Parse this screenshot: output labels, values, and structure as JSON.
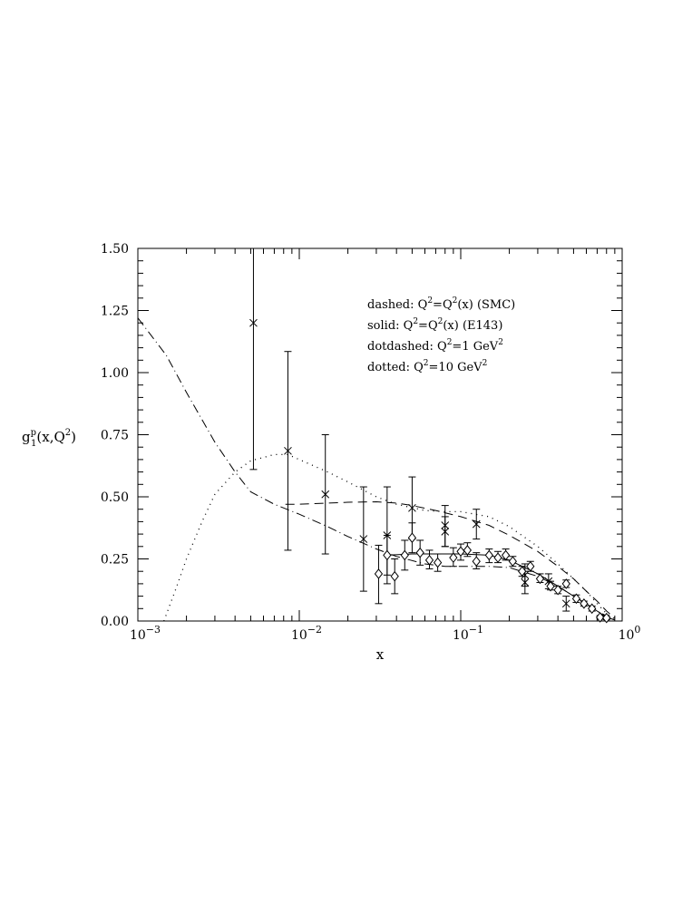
{
  "chart_data": {
    "type": "scatter",
    "title": "",
    "xlabel": "x",
    "ylabel": "g₁ᵖ(x,Q²)",
    "ylabel_parts": {
      "main": "g",
      "sub": "1",
      "sup": "p",
      "rest": "(x,Q",
      "rest_sup": "2",
      "close": ")"
    },
    "xscale": "log",
    "xlim": [
      0.001,
      1
    ],
    "ylim": [
      0,
      1.5
    ],
    "x_ticks": [
      {
        "value": 0.001,
        "base": "10",
        "exp": "−3"
      },
      {
        "value": 0.01,
        "base": "10",
        "exp": "−2"
      },
      {
        "value": 0.1,
        "base": "10",
        "exp": "−1"
      },
      {
        "value": 1,
        "base": "10",
        "exp": "0"
      }
    ],
    "y_ticks": [
      "0.00",
      "0.25",
      "0.50",
      "0.75",
      "1.00",
      "1.25",
      "1.50"
    ],
    "y_tick_values": [
      0,
      0.25,
      0.5,
      0.75,
      1.0,
      1.25,
      1.5
    ],
    "grid": false,
    "legend_position": "top-right",
    "legend": [
      {
        "style": "dashed",
        "parts": [
          [
            "dashed: Q",
            ""
          ],
          [
            "2",
            "sup"
          ],
          [
            "=Q",
            ""
          ],
          [
            "2",
            "sup"
          ],
          [
            "(x) (SMC)",
            ""
          ]
        ]
      },
      {
        "style": "solid",
        "parts": [
          [
            "solid:  Q",
            ""
          ],
          [
            "2",
            "sup"
          ],
          [
            "=Q",
            ""
          ],
          [
            "2",
            "sup"
          ],
          [
            "(x) (E143)",
            ""
          ]
        ]
      },
      {
        "style": "dotdashed",
        "parts": [
          [
            "dotdashed: Q",
            ""
          ],
          [
            "2",
            "sup"
          ],
          [
            "=1 GeV",
            ""
          ],
          [
            "2",
            "sup"
          ]
        ]
      },
      {
        "style": "dotted",
        "parts": [
          [
            "dotted: Q",
            ""
          ],
          [
            "2",
            "sup"
          ],
          [
            "=10 GeV",
            ""
          ],
          [
            "2",
            "sup"
          ]
        ]
      }
    ],
    "series": [
      {
        "marker": "cross",
        "points": [
          {
            "x": 0.0052,
            "y": 1.2,
            "lo": 0.61,
            "hi": 1.5
          },
          {
            "x": 0.0085,
            "y": 0.685,
            "lo": 0.285,
            "hi": 1.085
          },
          {
            "x": 0.0145,
            "y": 0.51,
            "lo": 0.27,
            "hi": 0.75
          },
          {
            "x": 0.025,
            "y": 0.33,
            "lo": 0.12,
            "hi": 0.54
          },
          {
            "x": 0.035,
            "y": 0.345,
            "lo": 0.15,
            "hi": 0.54
          },
          {
            "x": 0.05,
            "y": 0.455,
            "lo": 0.33,
            "hi": 0.58
          },
          {
            "x": 0.08,
            "y": 0.385,
            "lo": 0.3,
            "hi": 0.465
          },
          {
            "x": 0.08,
            "y": 0.36,
            "lo": 0.3,
            "hi": 0.42
          },
          {
            "x": 0.125,
            "y": 0.39,
            "lo": 0.33,
            "hi": 0.45
          },
          {
            "x": 0.25,
            "y": 0.185,
            "lo": 0.14,
            "hi": 0.23
          },
          {
            "x": 0.25,
            "y": 0.155,
            "lo": 0.11,
            "hi": 0.2
          },
          {
            "x": 0.35,
            "y": 0.16,
            "lo": 0.13,
            "hi": 0.19
          },
          {
            "x": 0.45,
            "y": 0.07,
            "lo": 0.04,
            "hi": 0.1
          }
        ]
      },
      {
        "marker": "diamond",
        "points": [
          {
            "x": 0.031,
            "y": 0.19,
            "lo": 0.07,
            "hi": 0.305
          },
          {
            "x": 0.035,
            "y": 0.265,
            "lo": 0.185,
            "hi": 0.345
          },
          {
            "x": 0.039,
            "y": 0.18,
            "lo": 0.11,
            "hi": 0.25
          },
          {
            "x": 0.045,
            "y": 0.265,
            "lo": 0.205,
            "hi": 0.325
          },
          {
            "x": 0.05,
            "y": 0.335,
            "lo": 0.275,
            "hi": 0.395
          },
          {
            "x": 0.056,
            "y": 0.275,
            "lo": 0.225,
            "hi": 0.325
          },
          {
            "x": 0.064,
            "y": 0.245,
            "lo": 0.21,
            "hi": 0.285
          },
          {
            "x": 0.072,
            "y": 0.235,
            "lo": 0.2,
            "hi": 0.27
          },
          {
            "x": 0.09,
            "y": 0.255,
            "lo": 0.22,
            "hi": 0.295
          },
          {
            "x": 0.1,
            "y": 0.28,
            "lo": 0.245,
            "hi": 0.31
          },
          {
            "x": 0.11,
            "y": 0.285,
            "lo": 0.26,
            "hi": 0.315
          },
          {
            "x": 0.125,
            "y": 0.24,
            "lo": 0.21,
            "hi": 0.275
          },
          {
            "x": 0.15,
            "y": 0.265,
            "lo": 0.235,
            "hi": 0.29
          },
          {
            "x": 0.17,
            "y": 0.255,
            "lo": 0.235,
            "hi": 0.28
          },
          {
            "x": 0.19,
            "y": 0.265,
            "lo": 0.245,
            "hi": 0.29
          },
          {
            "x": 0.21,
            "y": 0.24,
            "lo": 0.22,
            "hi": 0.26
          },
          {
            "x": 0.24,
            "y": 0.2,
            "lo": 0.18,
            "hi": 0.22
          },
          {
            "x": 0.27,
            "y": 0.22,
            "lo": 0.2,
            "hi": 0.24
          },
          {
            "x": 0.31,
            "y": 0.17,
            "lo": 0.155,
            "hi": 0.19
          },
          {
            "x": 0.36,
            "y": 0.14,
            "lo": 0.125,
            "hi": 0.16
          },
          {
            "x": 0.4,
            "y": 0.125,
            "lo": 0.11,
            "hi": 0.14
          },
          {
            "x": 0.45,
            "y": 0.15,
            "lo": 0.135,
            "hi": 0.165
          },
          {
            "x": 0.52,
            "y": 0.09,
            "lo": 0.075,
            "hi": 0.105
          },
          {
            "x": 0.58,
            "y": 0.07,
            "lo": 0.06,
            "hi": 0.08
          },
          {
            "x": 0.65,
            "y": 0.05,
            "lo": 0.04,
            "hi": 0.06
          },
          {
            "x": 0.73,
            "y": 0.015,
            "lo": 0.008,
            "hi": 0.022
          },
          {
            "x": 0.8,
            "y": 0.012,
            "lo": 0.005,
            "hi": 0.018
          }
        ]
      }
    ],
    "curves": [
      {
        "style": "dashed",
        "points": [
          [
            0.0082,
            0.47
          ],
          [
            0.01,
            0.47
          ],
          [
            0.015,
            0.475
          ],
          [
            0.02,
            0.478
          ],
          [
            0.03,
            0.48
          ],
          [
            0.04,
            0.475
          ],
          [
            0.05,
            0.465
          ],
          [
            0.07,
            0.445
          ],
          [
            0.1,
            0.42
          ],
          [
            0.15,
            0.385
          ],
          [
            0.2,
            0.345
          ],
          [
            0.3,
            0.28
          ],
          [
            0.4,
            0.22
          ],
          [
            0.5,
            0.17
          ],
          [
            0.6,
            0.12
          ],
          [
            0.7,
            0.08
          ],
          [
            0.8,
            0.04
          ],
          [
            0.9,
            0.012
          ]
        ]
      },
      {
        "style": "solid",
        "points": [
          [
            0.035,
            0.265
          ],
          [
            0.05,
            0.27
          ],
          [
            0.07,
            0.27
          ],
          [
            0.1,
            0.27
          ],
          [
            0.15,
            0.265
          ],
          [
            0.2,
            0.245
          ],
          [
            0.3,
            0.19
          ],
          [
            0.4,
            0.14
          ],
          [
            0.5,
            0.1
          ],
          [
            0.6,
            0.07
          ],
          [
            0.7,
            0.04
          ],
          [
            0.8,
            0.015
          ],
          [
            0.9,
            0.004
          ]
        ]
      },
      {
        "style": "dotdashed",
        "points": [
          [
            0.001,
            1.22
          ],
          [
            0.0015,
            1.07
          ],
          [
            0.002,
            0.92
          ],
          [
            0.003,
            0.72
          ],
          [
            0.004,
            0.6
          ],
          [
            0.005,
            0.52
          ],
          [
            0.007,
            0.47
          ],
          [
            0.01,
            0.43
          ],
          [
            0.015,
            0.38
          ],
          [
            0.02,
            0.34
          ],
          [
            0.03,
            0.29
          ],
          [
            0.04,
            0.26
          ],
          [
            0.06,
            0.23
          ],
          [
            0.08,
            0.22
          ],
          [
            0.1,
            0.22
          ],
          [
            0.15,
            0.22
          ],
          [
            0.2,
            0.215
          ],
          [
            0.3,
            0.18
          ],
          [
            0.4,
            0.14
          ],
          [
            0.5,
            0.1
          ],
          [
            0.6,
            0.07
          ],
          [
            0.7,
            0.04
          ],
          [
            0.8,
            0.02
          ],
          [
            0.9,
            0.005
          ]
        ]
      },
      {
        "style": "dotted",
        "points": [
          [
            0.00145,
            0.0
          ],
          [
            0.0017,
            0.12
          ],
          [
            0.002,
            0.25
          ],
          [
            0.0025,
            0.4
          ],
          [
            0.003,
            0.51
          ],
          [
            0.004,
            0.6
          ],
          [
            0.005,
            0.645
          ],
          [
            0.007,
            0.67
          ],
          [
            0.0085,
            0.67
          ],
          [
            0.01,
            0.65
          ],
          [
            0.015,
            0.6
          ],
          [
            0.02,
            0.56
          ],
          [
            0.03,
            0.5
          ],
          [
            0.04,
            0.47
          ],
          [
            0.06,
            0.445
          ],
          [
            0.08,
            0.44
          ],
          [
            0.1,
            0.44
          ],
          [
            0.15,
            0.42
          ],
          [
            0.2,
            0.38
          ],
          [
            0.3,
            0.3
          ],
          [
            0.4,
            0.23
          ],
          [
            0.5,
            0.17
          ],
          [
            0.6,
            0.12
          ],
          [
            0.7,
            0.07
          ],
          [
            0.8,
            0.03
          ],
          [
            0.9,
            0.008
          ]
        ]
      }
    ]
  }
}
